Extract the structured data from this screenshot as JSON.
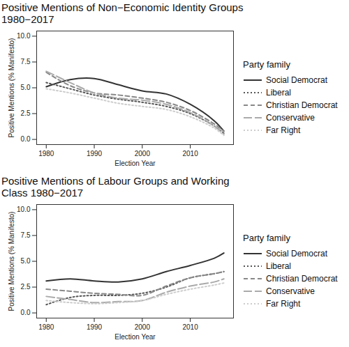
{
  "chart_data": [
    {
      "type": "line",
      "title": "Positive Mentions of Non−Economic Identity Groups 1980−2017",
      "x_label": "Election Year",
      "y_label": "Positive Mentions (% Manifesto)",
      "legend": "right",
      "legend_title": "Party family",
      "grid": false,
      "x": [
        1980,
        1985,
        1990,
        1995,
        2000,
        2005,
        2010,
        2015,
        2017
      ],
      "xlim": [
        1978,
        2019
      ],
      "xticks": [
        1980,
        1990,
        2000,
        2010
      ],
      "ylim": [
        -0.5,
        10.5
      ],
      "yticks": [
        {
          "value": 0,
          "label": "0.0"
        },
        {
          "value": 2.5,
          "label": "2.5"
        },
        {
          "value": 5,
          "label": "5.0"
        },
        {
          "value": 7.5,
          "label": "7.5"
        },
        {
          "value": 10,
          "label": "10.0"
        }
      ],
      "series": [
        {
          "name": "Social Democrat",
          "color": "#333333",
          "line_style": "solid",
          "values": [
            5.1,
            5.8,
            5.9,
            5.3,
            4.7,
            4.4,
            3.4,
            1.8,
            0.8
          ]
        },
        {
          "name": "Liberal",
          "color": "#555555",
          "line_style": "dotted",
          "values": [
            5.5,
            4.9,
            4.3,
            3.9,
            3.6,
            3.2,
            2.5,
            1.3,
            0.6
          ]
        },
        {
          "name": "Christian Democrat",
          "color": "#888888",
          "line_style": "dashed",
          "values": [
            6.5,
            5.2,
            4.5,
            4.3,
            4.0,
            3.6,
            2.8,
            1.5,
            0.8
          ]
        },
        {
          "name": "Conservative",
          "color": "#aaaaaa",
          "line_style": "longdash",
          "values": [
            6.6,
            5.5,
            4.5,
            4.0,
            3.8,
            3.4,
            2.6,
            1.3,
            0.5
          ]
        },
        {
          "name": "Far Right",
          "color": "#cccccc",
          "line_style": "dotted",
          "values": [
            4.9,
            4.5,
            4.0,
            3.5,
            3.2,
            2.9,
            2.2,
            1.1,
            0.4
          ]
        }
      ]
    },
    {
      "type": "line",
      "title": "Positive Mentions of Labour Groups and Working Class 1980−2017",
      "x_label": "Election Year",
      "y_label": "Positive Mentions (% Manifesto)",
      "legend": "right",
      "legend_title": "Party family",
      "grid": false,
      "x": [
        1980,
        1985,
        1990,
        1995,
        2000,
        2005,
        2010,
        2015,
        2017
      ],
      "xlim": [
        1978,
        2019
      ],
      "xticks": [
        1980,
        1990,
        2000,
        2010
      ],
      "ylim": [
        -0.5,
        10.5
      ],
      "yticks": [
        {
          "value": 0,
          "label": "0.0"
        },
        {
          "value": 2.5,
          "label": "2.5"
        },
        {
          "value": 5,
          "label": "5.0"
        },
        {
          "value": 7.5,
          "label": "7.5"
        },
        {
          "value": 10,
          "label": "10.0"
        }
      ],
      "series": [
        {
          "name": "Social Democrat",
          "color": "#333333",
          "line_style": "solid",
          "values": [
            3.1,
            3.3,
            3.1,
            3.0,
            3.3,
            4.0,
            4.6,
            5.3,
            5.8
          ]
        },
        {
          "name": "Liberal",
          "color": "#555555",
          "line_style": "dotted",
          "values": [
            0.8,
            1.5,
            1.7,
            1.7,
            1.9,
            2.5,
            3.4,
            3.8,
            4.0
          ]
        },
        {
          "name": "Christian Democrat",
          "color": "#888888",
          "line_style": "dashed",
          "values": [
            2.3,
            2.1,
            1.9,
            1.8,
            1.7,
            2.6,
            3.4,
            3.8,
            4.0
          ]
        },
        {
          "name": "Conservative",
          "color": "#aaaaaa",
          "line_style": "longdash",
          "values": [
            1.6,
            1.3,
            1.0,
            1.1,
            1.2,
            2.0,
            2.6,
            3.0,
            3.3
          ]
        },
        {
          "name": "Far Right",
          "color": "#cccccc",
          "line_style": "dotted",
          "values": [
            1.2,
            1.0,
            0.9,
            1.0,
            1.2,
            1.8,
            2.3,
            2.7,
            2.9
          ]
        }
      ]
    }
  ]
}
